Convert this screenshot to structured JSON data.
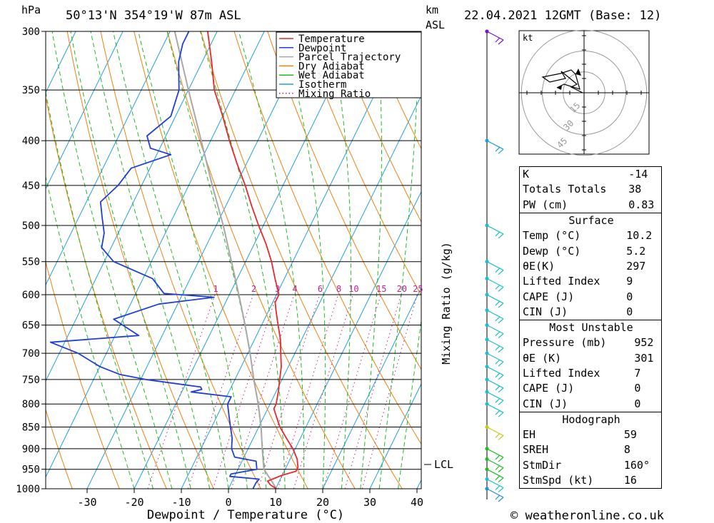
{
  "header": {
    "pressure_unit": "hPa",
    "location": "50°13'N 354°19'W 87m ASL",
    "height_unit_km": "km",
    "height_unit_asl": "ASL",
    "datetime": "22.04.2021 12GMT (Base: 12)"
  },
  "colors": {
    "temperature": "#e8282d",
    "dewpoint": "#1f3fd8",
    "parcel": "#a8a8a8",
    "dry_adiabat": "#f08010",
    "wet_adiabat": "#22bb22",
    "isotherm": "#22a0e0",
    "mixing_ratio": "#c8208e"
  },
  "legend": [
    {
      "key": "temperature",
      "label": "Temperature",
      "style": "solid"
    },
    {
      "key": "dewpoint",
      "label": "Dewpoint",
      "style": "solid"
    },
    {
      "key": "parcel",
      "label": "Parcel Trajectory",
      "style": "solid"
    },
    {
      "key": "dry_adiabat",
      "label": "Dry Adiabat",
      "style": "solid"
    },
    {
      "key": "wet_adiabat",
      "label": "Wet Adiabat",
      "style": "solid"
    },
    {
      "key": "isotherm",
      "label": "Isotherm",
      "style": "solid"
    },
    {
      "key": "mixing_ratio",
      "label": "Mixing Ratio",
      "style": "dotted"
    }
  ],
  "chart_data": {
    "type": "line",
    "subtype": "skew-T log-P",
    "xlabel": "Dewpoint / Temperature (°C)",
    "ylabel": "hPa",
    "xlim": [
      -40,
      40
    ],
    "ylim": [
      1000,
      300
    ],
    "y_scale": "log",
    "x_ticks": [
      -30,
      -20,
      -10,
      0,
      10,
      20,
      30,
      40
    ],
    "pressure_levels": [
      300,
      350,
      400,
      450,
      500,
      550,
      600,
      650,
      700,
      750,
      800,
      850,
      900,
      950,
      1000
    ],
    "series": [
      {
        "name": "Temperature",
        "key": "temperature",
        "points": [
          [
            1000,
            10.2
          ],
          [
            990,
            8.5
          ],
          [
            980,
            7.5
          ],
          [
            965,
            10
          ],
          [
            955,
            12.5
          ],
          [
            945,
            12.5
          ],
          [
            925,
            11.5
          ],
          [
            900,
            9.5
          ],
          [
            875,
            7
          ],
          [
            850,
            4.5
          ],
          [
            825,
            2.5
          ],
          [
            810,
            1.3
          ],
          [
            800,
            1.3
          ],
          [
            775,
            0.5
          ],
          [
            750,
            -0.5
          ],
          [
            725,
            -1.5
          ],
          [
            700,
            -3
          ],
          [
            675,
            -4.5
          ],
          [
            650,
            -6.5
          ],
          [
            625,
            -8.5
          ],
          [
            612,
            -9.5
          ],
          [
            600,
            -9.5
          ],
          [
            575,
            -12
          ],
          [
            550,
            -14.5
          ],
          [
            525,
            -17.5
          ],
          [
            500,
            -21
          ],
          [
            475,
            -24.5
          ],
          [
            450,
            -28
          ],
          [
            425,
            -32
          ],
          [
            400,
            -36
          ],
          [
            375,
            -40
          ],
          [
            350,
            -44.5
          ],
          [
            325,
            -48
          ],
          [
            300,
            -52
          ]
        ]
      },
      {
        "name": "Dewpoint",
        "key": "dewpoint",
        "points": [
          [
            1000,
            5.2
          ],
          [
            985,
            5.2
          ],
          [
            975,
            5.5
          ],
          [
            968,
            -1
          ],
          [
            962,
            -1
          ],
          [
            958,
            0.5
          ],
          [
            950,
            4
          ],
          [
            930,
            3
          ],
          [
            920,
            -2
          ],
          [
            900,
            -3.5
          ],
          [
            875,
            -4.5
          ],
          [
            850,
            -6
          ],
          [
            825,
            -7.5
          ],
          [
            800,
            -9
          ],
          [
            785,
            -9
          ],
          [
            775,
            -18
          ],
          [
            770,
            -16
          ],
          [
            765,
            -16.5
          ],
          [
            750,
            -29
          ],
          [
            740,
            -35
          ],
          [
            725,
            -40
          ],
          [
            700,
            -46
          ],
          [
            680,
            -53
          ],
          [
            668,
            -35
          ],
          [
            640,
            -42
          ],
          [
            615,
            -34
          ],
          [
            604,
            -23
          ],
          [
            598,
            -34
          ],
          [
            575,
            -38
          ],
          [
            550,
            -48
          ],
          [
            530,
            -52
          ],
          [
            510,
            -53
          ],
          [
            490,
            -55
          ],
          [
            470,
            -57
          ],
          [
            450,
            -55
          ],
          [
            430,
            -54
          ],
          [
            415,
            -47
          ],
          [
            408,
            -52
          ],
          [
            395,
            -54
          ],
          [
            375,
            -51
          ],
          [
            350,
            -52
          ],
          [
            325,
            -55
          ],
          [
            310,
            -56
          ],
          [
            300,
            -56
          ]
        ]
      },
      {
        "name": "Parcel Trajectory",
        "key": "parcel",
        "points": [
          [
            1000,
            10.2
          ],
          [
            950,
            5.5
          ],
          [
            940,
            5
          ],
          [
            900,
            3
          ],
          [
            850,
            0.5
          ],
          [
            800,
            -2.5
          ],
          [
            750,
            -6
          ],
          [
            700,
            -9.5
          ],
          [
            650,
            -13.5
          ],
          [
            600,
            -18
          ],
          [
            550,
            -23
          ],
          [
            500,
            -28.5
          ],
          [
            450,
            -35
          ],
          [
            400,
            -42
          ],
          [
            350,
            -50
          ],
          [
            300,
            -59
          ]
        ]
      }
    ],
    "mixing_ratio_labels": [
      "1",
      "2",
      "3",
      "4",
      "6",
      "8",
      "10",
      "15",
      "20",
      "25"
    ],
    "mixing_ratio_values": [
      1,
      2,
      3,
      4,
      6,
      8,
      10,
      15,
      20,
      25
    ],
    "mixing_ratio_axis_label": "Mixing Ratio (g/kg)",
    "lcl_label": "LCL",
    "lcl_pressure": 944
  },
  "hodograph": {
    "unit_label": "kt",
    "ring_labels": [
      "15",
      "30",
      "45"
    ],
    "rings": [
      15,
      30,
      45
    ]
  },
  "indices": {
    "k": {
      "label": "K",
      "value": "-14"
    },
    "tt": {
      "label": "Totals Totals",
      "value": "38"
    },
    "pw": {
      "label": "PW (cm)",
      "value": "0.83"
    },
    "surface": {
      "title": "Surface",
      "temp": {
        "label": "Temp (°C)",
        "value": "10.2"
      },
      "dewp": {
        "label": "Dewp (°C)",
        "value": "5.2"
      },
      "thetae": {
        "label": "θE(K)",
        "value": "297"
      },
      "li": {
        "label": "Lifted Index",
        "value": "9"
      },
      "cape": {
        "label": "CAPE (J)",
        "value": "0"
      },
      "cin": {
        "label": "CIN (J)",
        "value": "0"
      }
    },
    "most_unstable": {
      "title": "Most Unstable",
      "pressure": {
        "label": "Pressure (mb)",
        "value": "952"
      },
      "thetae": {
        "label": "θE (K)",
        "value": "301"
      },
      "li": {
        "label": "Lifted Index",
        "value": "7"
      },
      "cape": {
        "label": "CAPE (J)",
        "value": "0"
      },
      "cin": {
        "label": "CIN (J)",
        "value": "0"
      }
    },
    "hodo": {
      "title": "Hodograph",
      "eh": {
        "label": "EH",
        "value": "59"
      },
      "sreh": {
        "label": "SREH",
        "value": "8"
      },
      "stmdir": {
        "label": "StmDir",
        "value": "160°"
      },
      "stmspd": {
        "label": "StmSpd (kt)",
        "value": "16"
      }
    }
  },
  "footer": {
    "copyright": "© weatheronline.co.uk"
  }
}
